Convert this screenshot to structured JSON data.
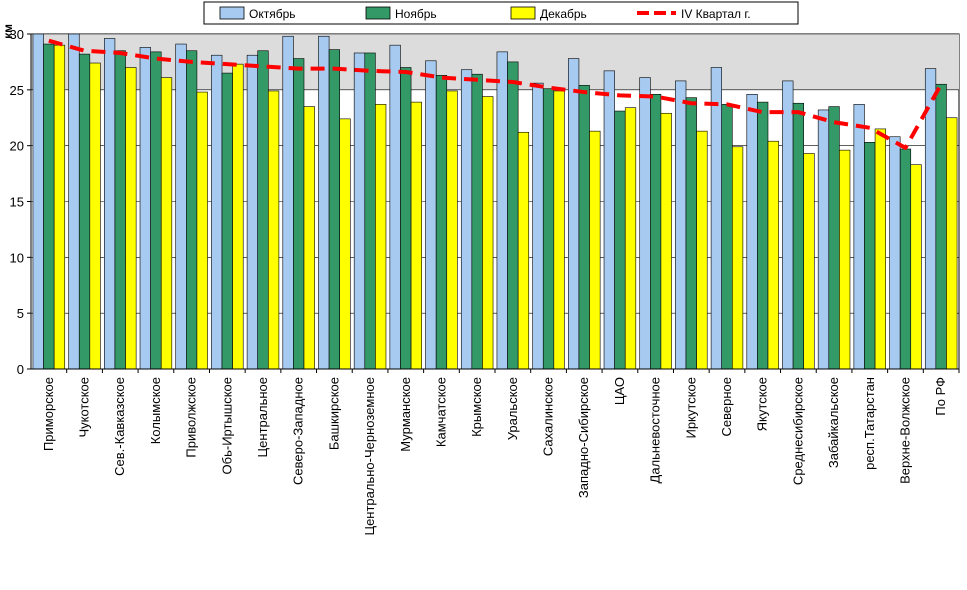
{
  "chart_data": {
    "type": "bar",
    "ylabel": "км",
    "ylim": [
      0,
      30
    ],
    "yticks": [
      0,
      5,
      10,
      15,
      20,
      25,
      30
    ],
    "grid": true,
    "legend_position": "top",
    "categories": [
      "Приморское",
      "Чукотское",
      "Сев.-Кавказское",
      "Колымское",
      "Приволжское",
      "Обь-Иртышское",
      "Центральное",
      "Северо-Западное",
      "Башкирское",
      "Центрально-Черноземное",
      "Мурманское",
      "Камчатское",
      "Крымское",
      "Уральское",
      "Сахалинское",
      "Западно-Сибирское",
      "ЦАО",
      "Дальневосточное",
      "Иркутское",
      "Северное",
      "Якутское",
      "Среднесибирское",
      "Забайкальское",
      "респ.Татарстан",
      "Верхне-Волжское",
      "По РФ"
    ],
    "series": [
      {
        "name": "Октябрь",
        "color": "#a6caf0",
        "values": [
          30.0,
          30.0,
          29.6,
          28.8,
          29.1,
          28.1,
          28.1,
          29.8,
          29.8,
          28.3,
          29.0,
          27.6,
          26.8,
          28.4,
          25.6,
          27.8,
          26.7,
          26.1,
          25.8,
          27.0,
          24.6,
          25.8,
          23.2,
          23.7,
          20.8,
          26.9
        ]
      },
      {
        "name": "Ноябрь",
        "color": "#339966",
        "values": [
          29.1,
          28.2,
          28.5,
          28.4,
          28.5,
          26.5,
          28.5,
          27.8,
          28.6,
          28.3,
          27.0,
          26.3,
          26.4,
          27.5,
          25.1,
          25.4,
          23.1,
          24.6,
          24.3,
          23.7,
          23.9,
          23.8,
          23.5,
          20.3,
          19.7,
          25.5
        ]
      },
      {
        "name": "Декабрь",
        "color": "#ffff00",
        "values": [
          29.0,
          27.4,
          27.0,
          26.1,
          24.8,
          27.3,
          24.9,
          23.5,
          22.4,
          23.7,
          23.9,
          24.9,
          24.4,
          21.2,
          24.9,
          21.3,
          23.4,
          22.9,
          21.3,
          19.9,
          20.4,
          19.3,
          19.6,
          21.5,
          18.3,
          22.5
        ]
      }
    ],
    "line": {
      "name": "IV Квартал г.",
      "color": "#ff0000",
      "values": [
        29.4,
        28.5,
        28.3,
        27.8,
        27.5,
        27.3,
        27.1,
        26.9,
        26.9,
        26.7,
        26.6,
        26.1,
        25.9,
        25.7,
        25.2,
        24.8,
        24.5,
        24.4,
        23.8,
        23.7,
        23.0,
        23.0,
        22.1,
        21.6,
        19.8,
        25.5
      ]
    }
  }
}
